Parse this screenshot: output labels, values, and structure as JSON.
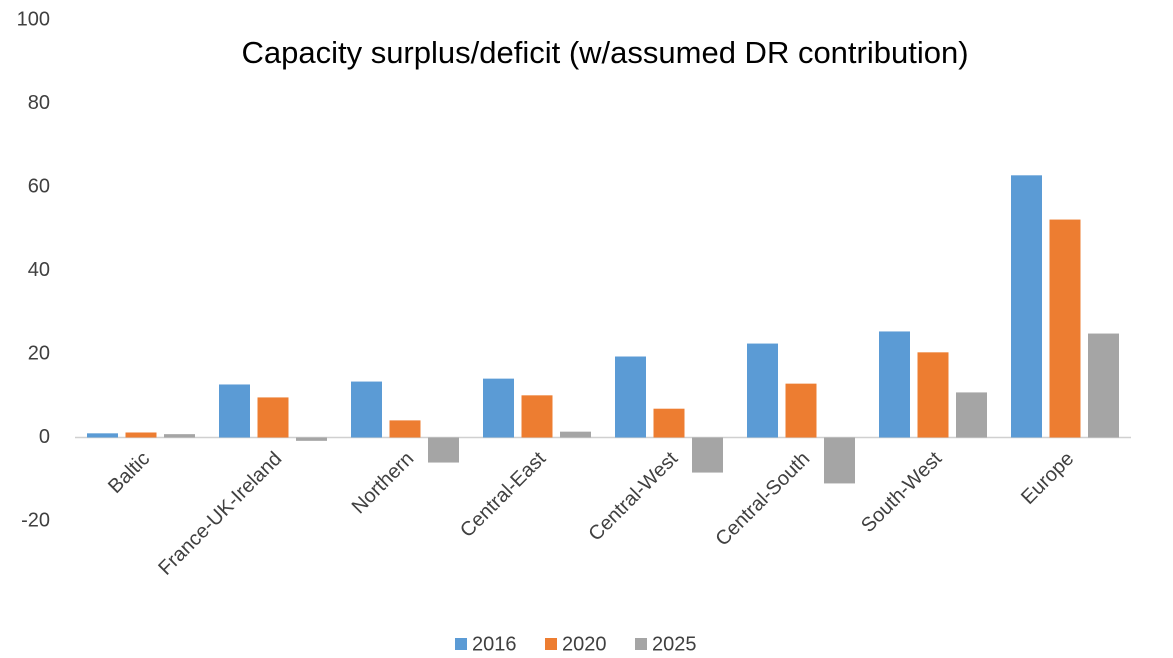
{
  "chart_data": {
    "type": "bar",
    "title": "Capacity surplus/deficit  (w/assumed DR contribution)",
    "categories": [
      "Baltic",
      "France-UK-Ireland",
      "Northern",
      "Central-East",
      "Central-West",
      "Central-South",
      "South-West",
      "Europe"
    ],
    "series": [
      {
        "name": "2016",
        "color": "#5b9bd5",
        "values": [
          1,
          12.7,
          13.4,
          14.1,
          19.4,
          22.5,
          25.4,
          62.8
        ]
      },
      {
        "name": "2020",
        "color": "#ed7d31",
        "values": [
          1.2,
          9.6,
          4.1,
          10.1,
          6.9,
          12.9,
          20.4,
          52.2
        ]
      },
      {
        "name": "2025",
        "color": "#a5a5a5",
        "values": [
          0.8,
          -0.8,
          -6,
          1.4,
          -8.4,
          -11,
          10.8,
          24.9
        ]
      }
    ],
    "ylim": [
      -20,
      100
    ],
    "yticks": [
      -20,
      0,
      20,
      40,
      60,
      80,
      100
    ],
    "grid": false,
    "legend": "bottom"
  }
}
